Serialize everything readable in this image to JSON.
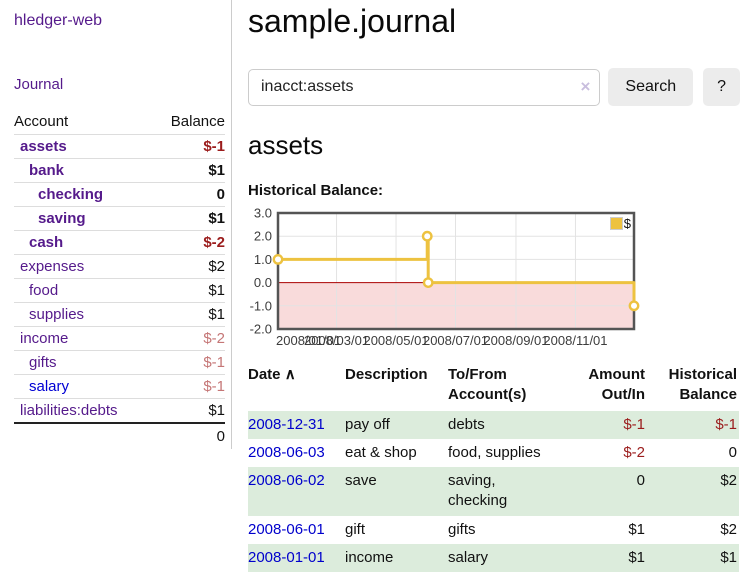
{
  "sidebar": {
    "app_title": "hledger-web",
    "journal_link": "Journal",
    "accounts_table": {
      "headers": {
        "account": "Account",
        "balance": "Balance"
      },
      "rows": [
        {
          "name": "assets",
          "balance": "$-1",
          "indent": 1,
          "bold": true,
          "balance_style": "neg-strong",
          "link_color": "purple"
        },
        {
          "name": "bank",
          "balance": "$1",
          "indent": 2,
          "bold": true,
          "balance_style": "pos-strong",
          "link_color": "purple"
        },
        {
          "name": "checking",
          "balance": "0",
          "indent": 3,
          "bold": true,
          "balance_style": "pos-strong",
          "link_color": "purple"
        },
        {
          "name": "saving",
          "balance": "$1",
          "indent": 3,
          "bold": true,
          "balance_style": "pos-strong",
          "link_color": "purple"
        },
        {
          "name": "cash",
          "balance": "$-2",
          "indent": 2,
          "bold": true,
          "balance_style": "neg-strong",
          "link_color": "purple"
        },
        {
          "name": "expenses",
          "balance": "$2",
          "indent": 1,
          "bold": false,
          "balance_style": "pos",
          "link_color": "purple"
        },
        {
          "name": "food",
          "balance": "$1",
          "indent": 2,
          "bold": false,
          "balance_style": "pos",
          "link_color": "purple"
        },
        {
          "name": "supplies",
          "balance": "$1",
          "indent": 2,
          "bold": false,
          "balance_style": "pos",
          "link_color": "purple"
        },
        {
          "name": "income",
          "balance": "$-2",
          "indent": 1,
          "bold": false,
          "balance_style": "neg-muted",
          "link_color": "purple"
        },
        {
          "name": "gifts",
          "balance": "$-1",
          "indent": 2,
          "bold": false,
          "balance_style": "neg-muted",
          "link_color": "purple"
        },
        {
          "name": "salary",
          "balance": "$-1",
          "indent": 2,
          "bold": false,
          "balance_style": "neg-muted",
          "link_color": "blue"
        },
        {
          "name": "liabilities:debts",
          "balance": "$1",
          "indent": 1,
          "bold": false,
          "balance_style": "pos",
          "link_color": "purple"
        }
      ],
      "total": "0"
    }
  },
  "main": {
    "title": "sample.journal",
    "search": {
      "value": "inacct:assets",
      "clear_icon": "×",
      "button_label": "Search",
      "help_label": "?"
    },
    "account_heading": "assets",
    "chart": {
      "title": "Historical Balance:",
      "legend_label": "$",
      "chart_data": {
        "type": "step-line",
        "series": [
          {
            "name": "$",
            "points": [
              {
                "date": "2008-01-01",
                "value": 1
              },
              {
                "date": "2008-06-02",
                "value": 2
              },
              {
                "date": "2008-06-03",
                "value": 0
              },
              {
                "date": "2008-12-31",
                "value": -1
              }
            ]
          }
        ],
        "ylim": [
          -2,
          3
        ],
        "yticks": [
          3,
          2,
          1,
          0,
          -1,
          -2
        ],
        "x_start": "2008-01-01",
        "x_end": "2008-12-31",
        "xticks": [
          {
            "date": "2008-01-01",
            "label": "2008/01/01"
          },
          {
            "date": "2008-03-01",
            "label": "2008/03/01"
          },
          {
            "date": "2008-05-01",
            "label": "2008/05/01"
          },
          {
            "date": "2008-07-01",
            "label": "2008/07/01"
          },
          {
            "date": "2008-09-01",
            "label": "2008/09/01"
          },
          {
            "date": "2008-11-01",
            "label": "2008/11/01"
          }
        ],
        "grid": true,
        "legend_position": "top-right",
        "series_color": "#EDC240",
        "negative_fill": "#F9DBDB",
        "zero_line_color": "#AA0000",
        "border_color": "#545454",
        "grid_color": "#e3e3e3"
      }
    },
    "register_table": {
      "headers": {
        "date": "Date",
        "description": "Description",
        "accounts": "To/From Account(s)",
        "amount": "Amount Out/In",
        "balance": "Historical Balance"
      },
      "sort_icon": "∧",
      "rows": [
        {
          "date": "2008-12-31",
          "description": "pay off",
          "accounts": [
            "debts"
          ],
          "amount": "$-1",
          "balance": "$-1",
          "amount_neg": true,
          "balance_neg": true
        },
        {
          "date": "2008-06-03",
          "description": "eat & shop",
          "accounts": [
            "food, supplies"
          ],
          "amount": "$-2",
          "balance": "0",
          "amount_neg": true,
          "balance_neg": false
        },
        {
          "date": "2008-06-02",
          "description": "save",
          "accounts": [
            "saving,",
            "checking"
          ],
          "amount": "0",
          "balance": "$2",
          "amount_neg": false,
          "balance_neg": false
        },
        {
          "date": "2008-06-01",
          "description": "gift",
          "accounts": [
            "gifts"
          ],
          "amount": "$1",
          "balance": "$2",
          "amount_neg": false,
          "balance_neg": false
        },
        {
          "date": "2008-01-01",
          "description": "income",
          "accounts": [
            "salary"
          ],
          "amount": "$1",
          "balance": "$1",
          "amount_neg": false,
          "balance_neg": false
        }
      ]
    }
  }
}
